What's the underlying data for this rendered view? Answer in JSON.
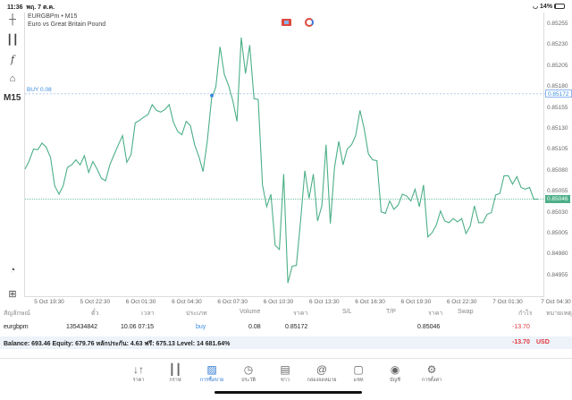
{
  "status_bar": {
    "time": "11:36",
    "date": "พฤ. 7 ต.ค.",
    "battery": "14%",
    "battery_level": 14
  },
  "toolbar": {
    "timeframe": "M15",
    "icons": [
      "crosshair-icon",
      "candles-icon",
      "function-icon",
      "objects-icon",
      "navigator-icon",
      "new-order-icon"
    ]
  },
  "chart": {
    "symbol": "EURGBPm • M15",
    "description": "Euro vs Great Britain Pound",
    "buy_label": "BUY 0.08",
    "buy_price": "0.85172",
    "current_price": "0.85046",
    "line_color": "#4caf87",
    "buy_color": "#3b8be0"
  },
  "chart_data": {
    "type": "line",
    "ylim": [
      0.84945,
      0.85265
    ],
    "y_ticks": [
      "0.85255",
      "0.85230",
      "0.85205",
      "0.85180",
      "0.85155",
      "0.85130",
      "0.85105",
      "0.85080",
      "0.85055",
      "0.85030",
      "0.85005",
      "0.84980",
      "0.84955"
    ],
    "x_ticks": [
      "5 Oct 19:30",
      "5 Oct 22:30",
      "6 Oct 01:30",
      "6 Oct 04:30",
      "6 Oct 07:30",
      "6 Oct 10:30",
      "6 Oct 13:30",
      "6 Oct 16:30",
      "6 Oct 19:30",
      "6 Oct 22:30",
      "7 Oct 01:30",
      "7 Oct 04:30"
    ],
    "values": [
      0.85082,
      0.85092,
      0.85106,
      0.85105,
      0.85113,
      0.85108,
      0.85096,
      0.85062,
      0.85052,
      0.85062,
      0.85084,
      0.85087,
      0.85093,
      0.85087,
      0.85098,
      0.85078,
      0.85091,
      0.85082,
      0.85071,
      0.85068,
      0.85087,
      0.85099,
      0.85111,
      0.85122,
      0.8509,
      0.85099,
      0.85137,
      0.8514,
      0.85144,
      0.85147,
      0.85159,
      0.85152,
      0.8515,
      0.85153,
      0.85159,
      0.85138,
      0.85127,
      0.85123,
      0.85139,
      0.85134,
      0.85111,
      0.85097,
      0.85079,
      0.85116,
      0.85166,
      0.8518,
      0.85228,
      0.85195,
      0.85182,
      0.85164,
      0.85139,
      0.85239,
      0.85196,
      0.8523,
      0.85166,
      0.85165,
      0.85063,
      0.85037,
      0.85052,
      0.84991,
      0.84986,
      0.85076,
      0.84946,
      0.84966,
      0.84967,
      0.8502,
      0.8508,
      0.85047,
      0.85076,
      0.8502,
      0.85038,
      0.85111,
      0.85017,
      0.85084,
      0.85115,
      0.85087,
      0.85106,
      0.85111,
      0.85122,
      0.85152,
      0.8513,
      0.851,
      0.85093,
      0.85092,
      0.85031,
      0.85029,
      0.85044,
      0.85034,
      0.85039,
      0.85052,
      0.8505,
      0.85044,
      0.85058,
      0.85037,
      0.85063,
      0.85001,
      0.85006,
      0.85015,
      0.85032,
      0.8502,
      0.85018,
      0.85023,
      0.85019,
      0.85023,
      0.85005,
      0.85014,
      0.85038,
      0.85018,
      0.85018,
      0.85028,
      0.8503,
      0.85051,
      0.85053,
      0.85074,
      0.85074,
      0.85064,
      0.85073,
      0.8506,
      0.85058,
      0.8506,
      0.85046,
      0.85046
    ],
    "buy_entry_index": 45
  },
  "table": {
    "headers": [
      "สัญลักษณ์",
      "ตั๋ว",
      "เวลา",
      "ประเภท",
      "Volume",
      "ราคา",
      "S/L",
      "T/P",
      "ราคา",
      "Swap",
      "กำไร",
      "หมายเหตุ"
    ],
    "row": {
      "symbol": "eurgbpm",
      "ticket": "135434842",
      "time": "10.06 07:15",
      "type": "buy",
      "volume": "0.08",
      "open_price": "0.85172",
      "sl": "",
      "tp": "",
      "price": "0.85046",
      "swap": "",
      "profit": "-13.70"
    },
    "balance_line": "Balance: 693.46 Equity: 679.76 หลักประกัน: 4.63 ฟรี: 675.13 Level: 14 681.64%",
    "total_profit": "-13.70",
    "currency": "USD",
    "loss_color": "#e0383e"
  },
  "nav": [
    {
      "label": "ราคา",
      "icon": "quotes-icon"
    },
    {
      "label": "กราฟ",
      "icon": "chart-icon"
    },
    {
      "label": "การซื้อขาย",
      "icon": "trade-icon",
      "active": true
    },
    {
      "label": "ประวัติ",
      "icon": "history-icon"
    },
    {
      "label": "ข่าว",
      "icon": "news-icon"
    },
    {
      "label": "กล่องจดหมาย",
      "icon": "mailbox-icon"
    },
    {
      "label": "แชท",
      "icon": "chat-icon"
    },
    {
      "label": "บัญชี",
      "icon": "account-icon"
    },
    {
      "label": "การตั้งค่า",
      "icon": "settings-icon"
    }
  ]
}
